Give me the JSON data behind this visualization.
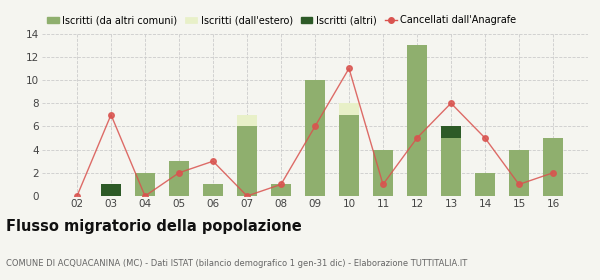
{
  "years": [
    "02",
    "03",
    "04",
    "05",
    "06",
    "07",
    "08",
    "09",
    "10",
    "11",
    "12",
    "13",
    "14",
    "15",
    "16"
  ],
  "iscritti_altri_comuni": [
    0,
    0,
    2,
    3,
    1,
    6,
    1,
    10,
    7,
    4,
    13,
    5,
    2,
    4,
    5
  ],
  "iscritti_estero": [
    0,
    0,
    0,
    0,
    0,
    1,
    0,
    0,
    1,
    0,
    0,
    0,
    0,
    0,
    0
  ],
  "iscritti_altri": [
    0,
    1,
    0,
    0,
    0,
    0,
    0,
    0,
    0,
    0,
    0,
    1,
    0,
    0,
    0
  ],
  "cancellati": [
    0,
    7,
    0,
    2,
    3,
    0,
    1,
    6,
    11,
    1,
    5,
    8,
    5,
    1,
    2
  ],
  "color_altri_comuni": "#8faf6e",
  "color_estero": "#e8f0c8",
  "color_altri": "#2d5a27",
  "color_cancellati": "#d9534f",
  "ylim": [
    0,
    14
  ],
  "yticks": [
    0,
    2,
    4,
    6,
    8,
    10,
    12,
    14
  ],
  "title": "Flusso migratorio della popolazione",
  "subtitle": "COMUNE DI ACQUACANINA (MC) - Dati ISTAT (bilancio demografico 1 gen-31 dic) - Elaborazione TUTTITALIA.IT",
  "legend_labels": [
    "Iscritti (da altri comuni)",
    "Iscritti (dall'estero)",
    "Iscritti (altri)",
    "Cancellati dall'Anagrafe"
  ],
  "bg_color": "#f5f5f0"
}
